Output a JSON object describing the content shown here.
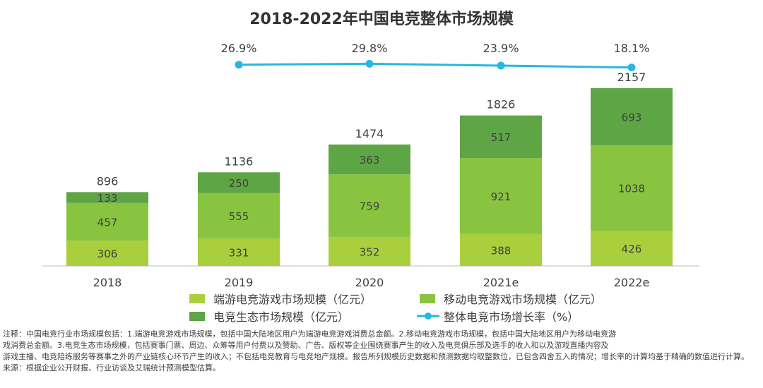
{
  "chart_data": {
    "type": "bar",
    "stacked": true,
    "title": "2018-2022年中国电竞整体市场规模",
    "categories": [
      "2018",
      "2019",
      "2020",
      "2021e",
      "2022e"
    ],
    "series": [
      {
        "name": "端游电竞游戏市场规模（亿元）",
        "color": "#a9cf3d",
        "values": [
          306,
          331,
          352,
          388,
          426
        ]
      },
      {
        "name": "移动电竞游戏市场规模（亿元）",
        "color": "#89c440",
        "values": [
          457,
          555,
          759,
          921,
          1038
        ]
      },
      {
        "name": "电竞生态市场规模（亿元）",
        "color": "#5ea645",
        "values": [
          133,
          250,
          363,
          517,
          693
        ]
      }
    ],
    "totals": [
      896,
      1136,
      1474,
      1826,
      2157
    ],
    "line_series": {
      "name": "整体电竞市场增长率（%）",
      "color": "#28b7e3",
      "categories": [
        "2019",
        "2020",
        "2021e",
        "2022e"
      ],
      "values": [
        26.9,
        29.8,
        23.9,
        18.1
      ],
      "labels": [
        "26.9%",
        "29.8%",
        "23.9%",
        "18.1%"
      ]
    },
    "ylim": [
      0,
      2500
    ],
    "grid": false,
    "legend_position": "bottom"
  },
  "notes": {
    "line1": "注释：中国电竞行业市场规模包括：1.端游电竞游戏市场规模，包括中国大陆地区用户为端游电竞游戏消费总金额。2.移动电竞游戏市场规模，包括中国大陆地区用户为移动电竞游",
    "line2": "戏消费总金额。3.电竞生态市场规模，包括赛事门票、周边、众筹等用户付费以及赞助、广告、版权等企业围绕赛事产生的收入及电竞俱乐部及选手的收入和以及游戏直播内容及",
    "line3": "游戏主播、电竞陪练服务等赛事之外的产业链核心环节产生的收入；不包括电竞教育与电竞地产规模。报告所列规模历史数据和预测数据均取整数位，已包含四舍五入的情况；增长率的计算均基于精确的数值进行计算。",
    "line4": "来源：根据企业公开财报、行业访谈及艾瑞统计预测模型估算。"
  }
}
